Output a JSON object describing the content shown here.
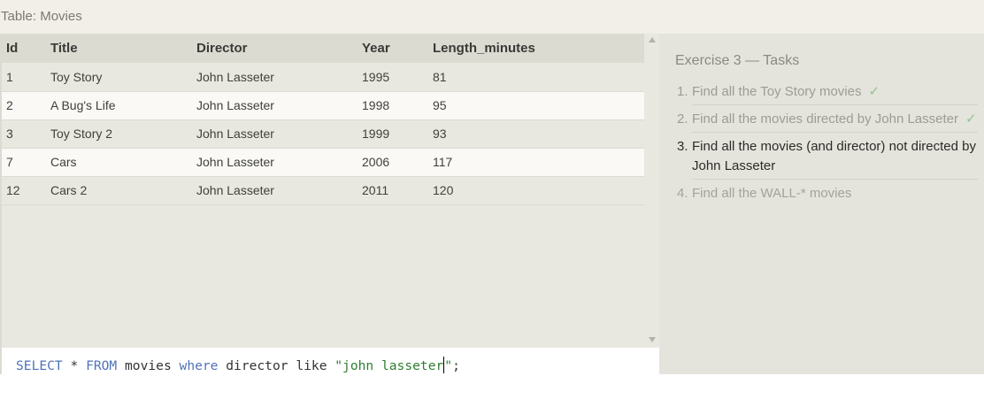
{
  "table_caption": "Table: Movies",
  "results": {
    "columns": [
      "Id",
      "Title",
      "Director",
      "Year",
      "Length_minutes"
    ],
    "rows": [
      [
        "1",
        "Toy Story",
        "John Lasseter",
        "1995",
        "81"
      ],
      [
        "2",
        "A Bug's Life",
        "John Lasseter",
        "1998",
        "95"
      ],
      [
        "3",
        "Toy Story 2",
        "John Lasseter",
        "1999",
        "93"
      ],
      [
        "7",
        "Cars",
        "John Lasseter",
        "2006",
        "117"
      ],
      [
        "12",
        "Cars 2",
        "John Lasseter",
        "2011",
        "120"
      ]
    ]
  },
  "editor": {
    "tokens": [
      {
        "text": "SELECT",
        "type": "kw"
      },
      {
        "text": " * ",
        "type": "plain"
      },
      {
        "text": "FROM",
        "type": "kw"
      },
      {
        "text": " movies ",
        "type": "plain"
      },
      {
        "text": "where",
        "type": "kw"
      },
      {
        "text": " director like ",
        "type": "plain"
      },
      {
        "text": "\"john lasseter",
        "type": "str"
      },
      {
        "text": "\"",
        "type": "str"
      },
      {
        "text": ";",
        "type": "plain"
      }
    ]
  },
  "exercise": {
    "title": "Exercise 3 — Tasks",
    "tasks": [
      {
        "num": "1.",
        "text": "Find all the Toy Story movies",
        "check": "✓",
        "state": "done"
      },
      {
        "num": "2.",
        "text": "Find all the movies directed by John Lasseter",
        "check": "✓",
        "state": "done"
      },
      {
        "num": "3.",
        "text": "Find all the movies (and director) not directed by John Lasseter",
        "check": "",
        "state": "active"
      },
      {
        "num": "4.",
        "text": "Find all the WALL-* movies",
        "check": "",
        "state": "todo"
      }
    ]
  },
  "colors": {
    "keyword": "#4f73b8",
    "string": "#2f7d32",
    "check": "#8fc48d"
  }
}
